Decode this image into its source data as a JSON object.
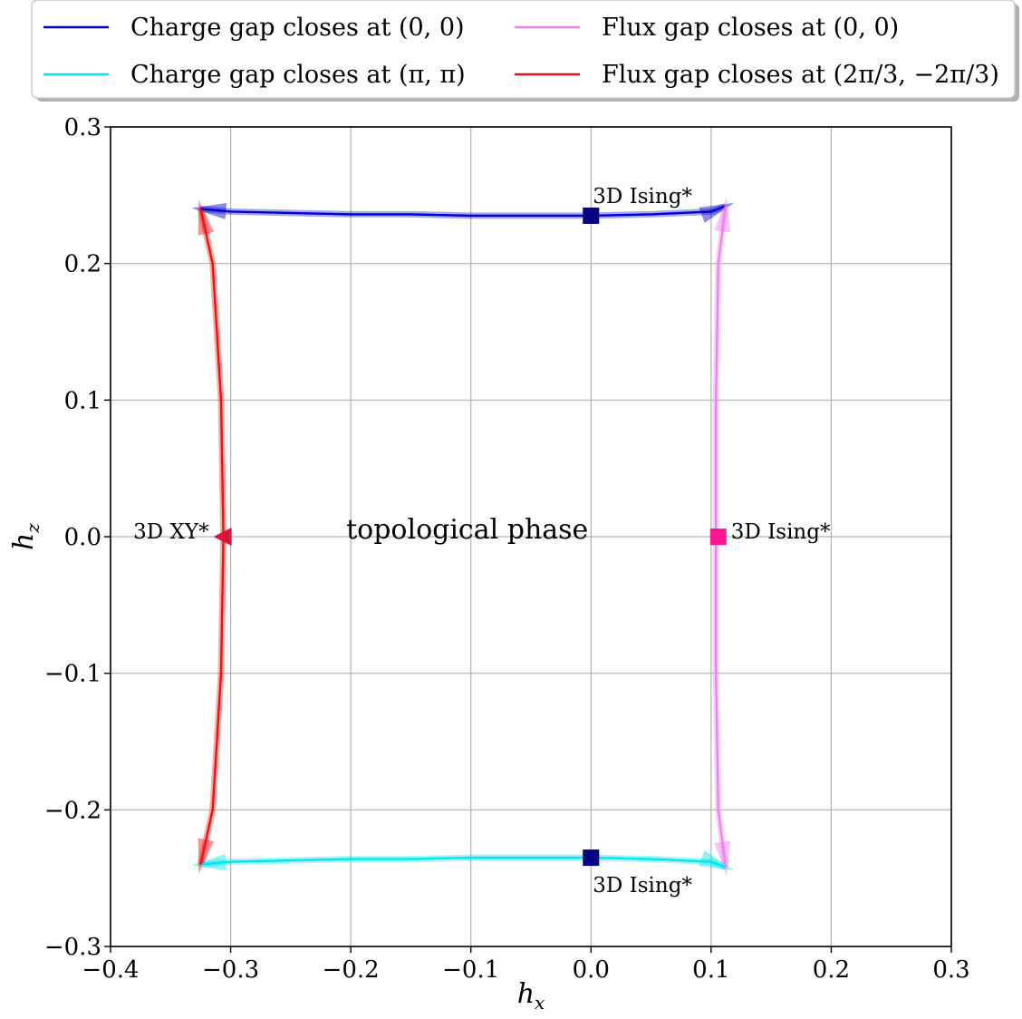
{
  "chart_data": {
    "type": "line",
    "xlabel": "h_x",
    "ylabel": "h_z",
    "xlim": [
      -0.4,
      0.3
    ],
    "ylim": [
      -0.3,
      0.3
    ],
    "xticks": [
      -0.4,
      -0.3,
      -0.2,
      -0.1,
      0.0,
      0.1,
      0.2,
      0.3
    ],
    "yticks": [
      -0.3,
      -0.2,
      -0.1,
      0.0,
      0.1,
      0.2,
      0.3
    ],
    "xtick_labels": [
      "−0.4",
      "−0.3",
      "−0.2",
      "−0.1",
      "0.0",
      "0.1",
      "0.2",
      "0.3"
    ],
    "ytick_labels": [
      "−0.3",
      "−0.2",
      "−0.1",
      "0.0",
      "0.1",
      "0.2",
      "0.3"
    ],
    "grid": true,
    "legend_placement": "top",
    "series": [
      {
        "name": "Charge gap closes at (0, 0)",
        "color": "#0000cc",
        "x": [
          -0.325,
          -0.3,
          -0.25,
          -0.2,
          -0.15,
          -0.1,
          -0.05,
          0.0,
          0.05,
          0.1,
          0.112
        ],
        "y": [
          0.24,
          0.238,
          0.237,
          0.236,
          0.236,
          0.235,
          0.235,
          0.235,
          0.236,
          0.238,
          0.242
        ]
      },
      {
        "name": "Charge gap closes at (π, π)",
        "color": "#00e5ee",
        "x": [
          -0.325,
          -0.3,
          -0.25,
          -0.2,
          -0.15,
          -0.1,
          -0.05,
          0.0,
          0.05,
          0.1,
          0.112
        ],
        "y": [
          -0.24,
          -0.238,
          -0.237,
          -0.236,
          -0.236,
          -0.235,
          -0.235,
          -0.235,
          -0.236,
          -0.238,
          -0.242
        ]
      },
      {
        "name": "Flux gap closes at (0, 0)",
        "color": "#ee82ee",
        "x": [
          0.112,
          0.106,
          0.104,
          0.104,
          0.104,
          0.106,
          0.112
        ],
        "y": [
          0.242,
          0.2,
          0.1,
          0.0,
          -0.1,
          -0.2,
          -0.242
        ]
      },
      {
        "name": "Flux gap closes at (2π/3, −2π/3)",
        "color": "#ee1111",
        "x": [
          -0.325,
          -0.315,
          -0.308,
          -0.306,
          -0.308,
          -0.315,
          -0.325
        ],
        "y": [
          0.24,
          0.2,
          0.1,
          0.0,
          -0.1,
          -0.2,
          -0.24
        ]
      }
    ],
    "points": [
      {
        "label": "3D Ising*",
        "x": 0.0,
        "y": 0.235,
        "marker": "square",
        "color": "#000080",
        "label_pos": "above"
      },
      {
        "label": "3D Ising*",
        "x": 0.0,
        "y": -0.235,
        "marker": "square",
        "color": "#000080",
        "label_pos": "below"
      },
      {
        "label": "3D Ising*",
        "x": 0.106,
        "y": 0.0,
        "marker": "square",
        "color": "#ff1493",
        "label_pos": "right"
      },
      {
        "label": "3D XY*",
        "x": -0.306,
        "y": 0.0,
        "marker": "triangle-left",
        "color": "#dc143c",
        "label_pos": "left"
      }
    ],
    "annotations": [
      {
        "text": "topological phase",
        "x": -0.1,
        "y": 0.0
      }
    ]
  }
}
